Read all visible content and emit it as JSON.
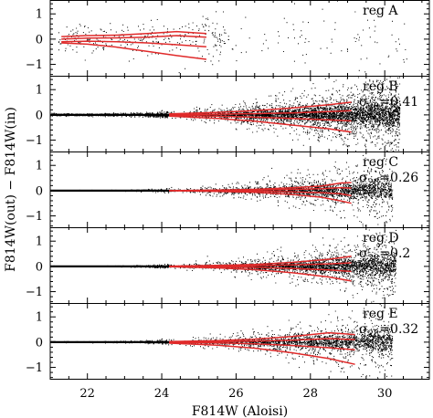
{
  "chart_data": {
    "type": "scatter",
    "xlabel": "F814W (Aloisi)",
    "ylabel": "F814W(out) − F814W(in)",
    "xlim": [
      21,
      31.2
    ],
    "ylim": [
      -1.45,
      1.55
    ],
    "x_ticks": [
      22,
      24,
      26,
      28,
      30
    ],
    "x_tick_labels": [
      "22",
      "24",
      "26",
      "28",
      "30"
    ],
    "y_ticks": [
      -1,
      0,
      1
    ],
    "y_tick_labels": [
      "−1",
      "0",
      "1"
    ],
    "grid": false,
    "curve_color": "#e02a2a",
    "point_color": "#000000",
    "panels": [
      {
        "label": "reg A",
        "sigma_text": "",
        "n_points": 420,
        "x_min": 21.2,
        "x_max": 30.6,
        "scatter": {
          "base": 0.05,
          "growth": 0.42,
          "core_fraction": 0.35
        },
        "curves_x": [
          21.3,
          22.0,
          22.8,
          23.6,
          24.4,
          25.2
        ],
        "curves": [
          [
            0.1,
            0.14,
            0.16,
            0.22,
            0.3,
            0.22
          ],
          [
            0.0,
            0.04,
            0.05,
            0.08,
            0.14,
            0.08
          ],
          [
            -0.1,
            -0.08,
            -0.1,
            -0.15,
            -0.22,
            -0.3
          ],
          [
            -0.15,
            -0.2,
            -0.32,
            -0.48,
            -0.65,
            -0.8
          ]
        ]
      },
      {
        "label": "reg B",
        "sigma_text": "0.41",
        "n_points": 6000,
        "x_min": 21.0,
        "x_max": 30.4,
        "scatter": {
          "base": 0.02,
          "growth": 0.36,
          "core_fraction": 0.55
        },
        "curves_x": [
          24.2,
          25.5,
          26.5,
          27.5,
          28.5,
          29.1
        ],
        "curves": [
          [
            0.04,
            0.1,
            0.17,
            0.27,
            0.4,
            0.5
          ],
          [
            0.01,
            0.03,
            0.05,
            0.08,
            0.13,
            0.17
          ],
          [
            -0.02,
            -0.05,
            -0.09,
            -0.14,
            -0.2,
            -0.24
          ],
          [
            -0.05,
            -0.14,
            -0.25,
            -0.4,
            -0.55,
            -0.68
          ]
        ]
      },
      {
        "label": "reg C",
        "sigma_text": "0.26",
        "n_points": 3400,
        "x_min": 21.0,
        "x_max": 30.2,
        "scatter": {
          "base": 0.005,
          "growth": 0.3,
          "core_fraction": 0.65
        },
        "curves_x": [
          24.2,
          25.5,
          26.5,
          27.5,
          28.3,
          28.8,
          29.1
        ],
        "curves": [
          [
            0.0,
            0.02,
            0.05,
            0.11,
            0.18,
            0.3,
            0.32
          ],
          [
            0.0,
            0.01,
            0.03,
            0.05,
            0.08,
            0.12,
            0.1
          ],
          [
            0.0,
            -0.01,
            -0.02,
            -0.05,
            -0.08,
            -0.12,
            -0.2
          ],
          [
            0.0,
            -0.03,
            -0.07,
            -0.15,
            -0.26,
            -0.4,
            -0.5
          ]
        ]
      },
      {
        "label": "reg D",
        "sigma_text": "0.2",
        "n_points": 4200,
        "x_min": 21.0,
        "x_max": 30.3,
        "scatter": {
          "base": 0.005,
          "growth": 0.3,
          "core_fraction": 0.6
        },
        "curves_x": [
          24.2,
          25.5,
          26.5,
          27.5,
          28.5,
          29.1
        ],
        "curves": [
          [
            0.01,
            0.04,
            0.08,
            0.16,
            0.28,
            0.4
          ],
          [
            0.0,
            0.01,
            0.03,
            0.06,
            0.1,
            0.14
          ],
          [
            0.0,
            -0.02,
            -0.04,
            -0.08,
            -0.14,
            -0.2
          ],
          [
            -0.01,
            -0.06,
            -0.13,
            -0.25,
            -0.42,
            -0.58
          ]
        ]
      },
      {
        "label": "reg E",
        "sigma_text": "0.32",
        "n_points": 3200,
        "x_min": 21.0,
        "x_max": 30.2,
        "scatter": {
          "base": 0.01,
          "growth": 0.32,
          "core_fraction": 0.6
        },
        "curves_x": [
          24.2,
          25.5,
          26.5,
          27.5,
          28.5,
          29.2
        ],
        "curves": [
          [
            0.02,
            0.06,
            0.12,
            0.22,
            0.37,
            0.3
          ],
          [
            0.0,
            0.02,
            0.04,
            0.08,
            0.14,
            0.1
          ],
          [
            -0.01,
            -0.03,
            -0.07,
            -0.13,
            -0.22,
            -0.3
          ],
          [
            -0.04,
            -0.12,
            -0.24,
            -0.42,
            -0.65,
            -0.88
          ]
        ]
      }
    ]
  }
}
